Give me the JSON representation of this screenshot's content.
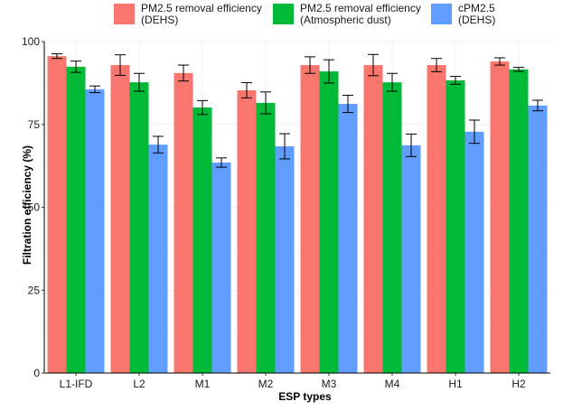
{
  "chart_data": {
    "type": "bar",
    "title": "",
    "xlabel": "ESP types",
    "ylabel": "Filtration efficiency (%)",
    "ylim": [
      0,
      100
    ],
    "yticks": [
      "0",
      "25",
      "50",
      "75",
      "100"
    ],
    "ytick_values": [
      0,
      25,
      50,
      75,
      100
    ],
    "grid": true,
    "legend_position": "top",
    "categories": [
      "L1-IFD",
      "L2",
      "M1",
      "M2",
      "M3",
      "M4",
      "H1",
      "H2"
    ],
    "series": [
      {
        "name": "PM2.5 removal efficiency (DEHS)",
        "label_lines": [
          "PM2.5 removal efficiency",
          "(DEHS)"
        ],
        "color": "#F8766D",
        "values": [
          95.6,
          92.9,
          90.5,
          85.3,
          92.9,
          92.9,
          92.9,
          94.0
        ],
        "errors": [
          0.7,
          3.1,
          2.4,
          2.3,
          2.5,
          3.2,
          2.0,
          1.1
        ]
      },
      {
        "name": "PM2.5 removal efficiency (Atmospheric dust)",
        "label_lines": [
          "PM2.5 removal efficiency",
          "(Atmospheric dust)"
        ],
        "color": "#00BA38",
        "values": [
          92.4,
          87.7,
          80.1,
          81.5,
          91.0,
          87.7,
          88.3,
          91.6
        ],
        "errors": [
          1.7,
          2.7,
          2.1,
          3.3,
          3.5,
          2.7,
          1.2,
          0.6
        ]
      },
      {
        "name": "cPM2.5 (DEHS)",
        "label_lines": [
          "cPM2.5",
          "(DEHS)"
        ],
        "color": "#619CFF",
        "values": [
          85.6,
          68.9,
          63.5,
          68.4,
          81.2,
          68.7,
          72.8,
          80.7
        ],
        "errors": [
          1.0,
          2.5,
          1.4,
          3.8,
          2.6,
          3.4,
          3.5,
          1.6
        ]
      }
    ]
  }
}
